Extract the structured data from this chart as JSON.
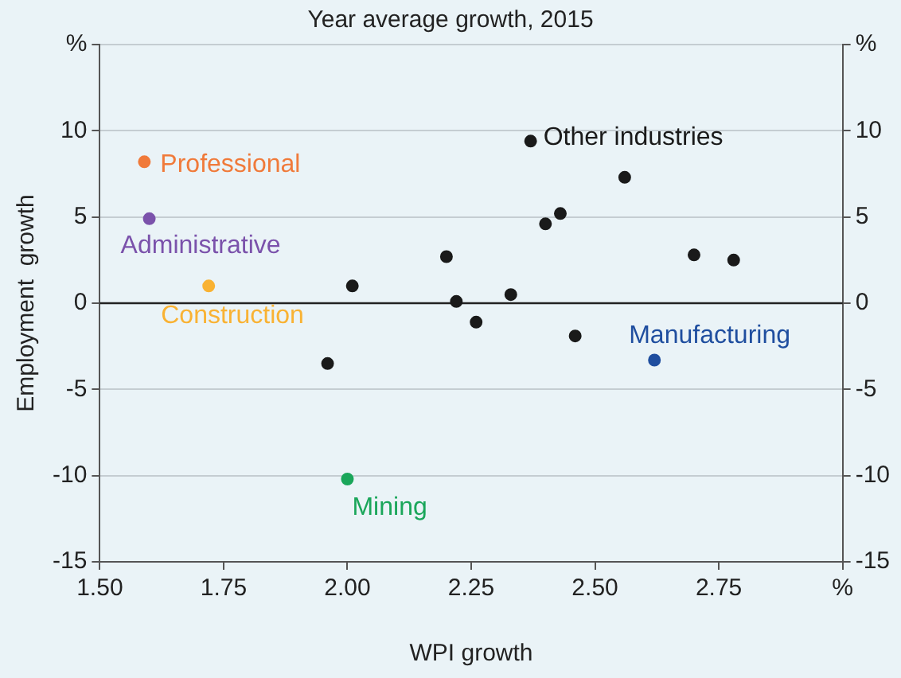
{
  "chart_data": {
    "type": "scatter",
    "title": "Year average growth, 2015",
    "xlabel": "WPI growth",
    "ylabel": "Employment  growth",
    "xlim": [
      1.5,
      3.0
    ],
    "xticks": [
      {
        "value": 1.5,
        "label": "1.50"
      },
      {
        "value": 1.75,
        "label": "1.75"
      },
      {
        "value": 2.0,
        "label": "2.00"
      },
      {
        "value": 2.25,
        "label": "2.25"
      },
      {
        "value": 2.5,
        "label": "2.50"
      },
      {
        "value": 2.75,
        "label": "2.75"
      },
      {
        "value": 3.0,
        "label": "%"
      }
    ],
    "ylim": [
      -15,
      15
    ],
    "yticks": [
      -15,
      -10,
      -5,
      0,
      5,
      10,
      {
        "value": 15,
        "label": "%"
      }
    ],
    "y2lim": [
      -15,
      15
    ],
    "y2ticks": [
      -15,
      -10,
      -5,
      0,
      5,
      10,
      {
        "value": 15,
        "label": "%"
      }
    ],
    "grid": "y",
    "legend": false,
    "marker": "circle",
    "series": [
      {
        "name": "Professional",
        "color": "#f07a3a",
        "x": [
          1.59
        ],
        "values": [
          8.2
        ]
      },
      {
        "name": "Administrative",
        "color": "#7b52ab",
        "x": [
          1.6
        ],
        "values": [
          4.9
        ]
      },
      {
        "name": "Construction",
        "color": "#f9b233",
        "x": [
          1.72
        ],
        "values": [
          1.0
        ]
      },
      {
        "name": "Mining",
        "color": "#1aa65a",
        "x": [
          2.0
        ],
        "values": [
          -10.2
        ]
      },
      {
        "name": "Manufacturing",
        "color": "#1f4e9f",
        "x": [
          2.62
        ],
        "values": [
          -3.3
        ]
      },
      {
        "name": "Other industries",
        "color": "#1a1a1a",
        "x": [
          2.37,
          2.56,
          2.4,
          2.43,
          2.2,
          2.01,
          2.22,
          2.33,
          2.26,
          2.46,
          1.96,
          2.7,
          2.78
        ],
        "values": [
          9.4,
          7.3,
          4.6,
          5.2,
          2.7,
          1.0,
          0.1,
          0.5,
          -1.1,
          -1.9,
          -3.5,
          2.8,
          2.5
        ]
      }
    ]
  }
}
